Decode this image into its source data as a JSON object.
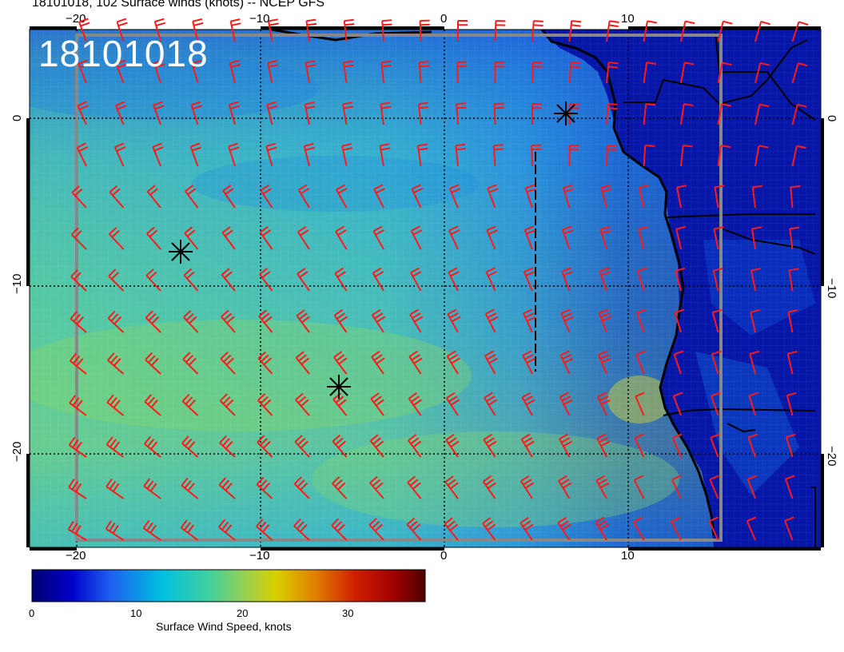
{
  "title": "18101018, 102 Surface winds (knots) -- NCEP GFS",
  "stamp": "18101018",
  "axes": {
    "x_ticks": [
      "−20",
      "−10",
      "0",
      "10"
    ],
    "y_ticks": [
      "0",
      "−10",
      "−20"
    ]
  },
  "colorbar": {
    "label": "Surface Wind Speed, knots",
    "ticks": [
      "0",
      "10",
      "20",
      "30"
    ],
    "colors": [
      "#000080",
      "#0000d0",
      "#2a6cf0",
      "#00c8d8",
      "#50d090",
      "#c8d000",
      "#e07000",
      "#c00000",
      "#600000"
    ]
  },
  "markers": {
    "symbol": "asterisk",
    "count": 3
  },
  "colors": {
    "barb": "#ff1a1a",
    "coast": "#000000",
    "grid": "#000000",
    "ocean_high": "#66d18e",
    "ocean_low": "#0a1fb0"
  }
}
